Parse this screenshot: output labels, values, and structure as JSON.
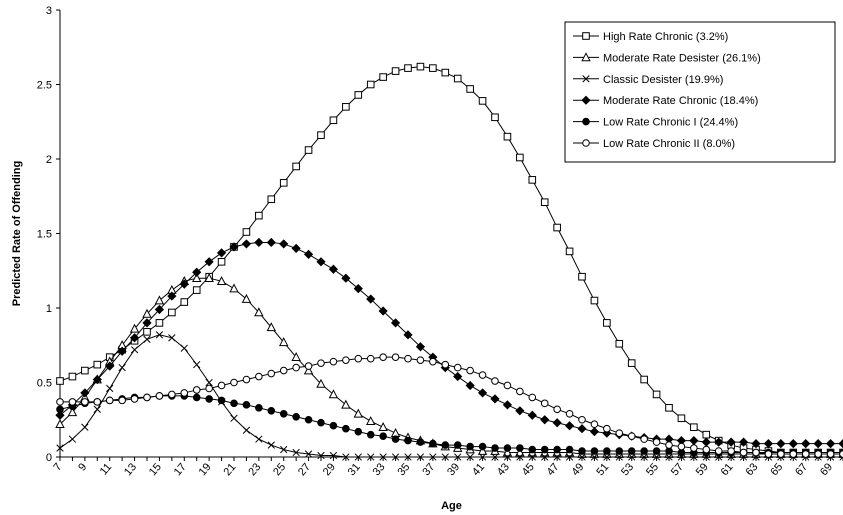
{
  "chart_data": {
    "type": "line",
    "xlabel": "Age",
    "ylabel": "Predicted Rate of Offending",
    "xlim": [
      7,
      70
    ],
    "ylim": [
      0,
      3
    ],
    "x_tick_labels": [
      "7",
      "9",
      "11",
      "13",
      "15",
      "17",
      "19",
      "21",
      "23",
      "25",
      "27",
      "29",
      "31",
      "33",
      "35",
      "37",
      "39",
      "41",
      "43",
      "45",
      "47",
      "49",
      "51",
      "53",
      "55",
      "57",
      "59",
      "61",
      "63",
      "65",
      "67",
      "69"
    ],
    "y_tick_labels": [
      "0",
      "0.5",
      "1",
      "1.5",
      "2",
      "2.5",
      "3"
    ],
    "y_tick_values": [
      0,
      0.5,
      1,
      1.5,
      2,
      2.5,
      3
    ],
    "grid": false,
    "legend_position": "top-right",
    "series": [
      {
        "name": "High Rate Chronic (3.2%)",
        "marker": "square-open",
        "x": [
          7,
          8,
          9,
          10,
          11,
          12,
          13,
          14,
          15,
          16,
          17,
          18,
          19,
          20,
          21,
          22,
          23,
          24,
          25,
          26,
          27,
          28,
          29,
          30,
          31,
          32,
          33,
          34,
          35,
          36,
          37,
          38,
          39,
          40,
          41,
          42,
          43,
          44,
          45,
          46,
          47,
          48,
          49,
          50,
          51,
          52,
          53,
          54,
          55,
          56,
          57,
          58,
          59,
          60,
          61,
          62,
          63,
          64,
          65,
          66,
          67,
          68,
          69,
          70
        ],
        "values": [
          0.51,
          0.54,
          0.58,
          0.62,
          0.67,
          0.72,
          0.78,
          0.84,
          0.9,
          0.97,
          1.04,
          1.12,
          1.21,
          1.31,
          1.41,
          1.51,
          1.62,
          1.73,
          1.84,
          1.95,
          2.06,
          2.16,
          2.26,
          2.35,
          2.43,
          2.5,
          2.55,
          2.59,
          2.61,
          2.62,
          2.61,
          2.58,
          2.54,
          2.47,
          2.39,
          2.28,
          2.15,
          2.01,
          1.86,
          1.71,
          1.54,
          1.38,
          1.21,
          1.05,
          0.9,
          0.76,
          0.63,
          0.52,
          0.42,
          0.33,
          0.26,
          0.2,
          0.15,
          0.11,
          0.08,
          0.06,
          0.05,
          0.04,
          0.03,
          0.03,
          0.03,
          0.03,
          0.03,
          0.03
        ]
      },
      {
        "name": "Moderate Rate Desister (26.1%)",
        "marker": "triangle-open",
        "x": [
          7,
          8,
          9,
          10,
          11,
          12,
          13,
          14,
          15,
          16,
          17,
          18,
          19,
          20,
          21,
          22,
          23,
          24,
          25,
          26,
          27,
          28,
          29,
          30,
          31,
          32,
          33,
          34,
          35,
          36,
          37,
          38,
          39,
          40,
          41,
          42,
          43,
          44,
          45,
          46,
          47,
          48,
          49,
          50,
          51,
          52,
          53,
          54,
          55,
          56,
          57,
          58,
          59,
          60,
          61,
          62,
          63,
          64,
          65,
          66,
          67,
          68,
          69,
          70
        ],
        "values": [
          0.22,
          0.3,
          0.4,
          0.52,
          0.64,
          0.75,
          0.86,
          0.96,
          1.05,
          1.12,
          1.18,
          1.2,
          1.2,
          1.18,
          1.13,
          1.06,
          0.97,
          0.87,
          0.77,
          0.67,
          0.58,
          0.49,
          0.42,
          0.35,
          0.29,
          0.24,
          0.2,
          0.16,
          0.13,
          0.11,
          0.09,
          0.07,
          0.06,
          0.05,
          0.04,
          0.04,
          0.03,
          0.03,
          0.03,
          0.03,
          0.03,
          0.03,
          0.02,
          0.02,
          0.02,
          0.02,
          0.02,
          0.02,
          0.02,
          0.02,
          0.02,
          0.02,
          0.02,
          0.02,
          0.02,
          0.02,
          0.02,
          0.02,
          0.02,
          0.02,
          0.02,
          0.02,
          0.02,
          0.02
        ]
      },
      {
        "name": "Classic Desister (19.9%)",
        "marker": "x",
        "x": [
          7,
          8,
          9,
          10,
          11,
          12,
          13,
          14,
          15,
          16,
          17,
          18,
          19,
          20,
          21,
          22,
          23,
          24,
          25,
          26,
          27,
          28,
          29,
          30,
          31,
          32,
          33,
          34,
          35,
          36,
          37,
          38,
          39,
          40,
          41,
          42,
          43,
          44,
          45,
          46,
          47,
          48,
          49,
          50,
          51,
          52,
          53,
          54,
          55,
          56,
          57,
          58,
          59,
          60,
          61,
          62,
          63,
          64,
          65,
          66,
          67,
          68,
          69,
          70
        ],
        "values": [
          0.06,
          0.12,
          0.2,
          0.32,
          0.46,
          0.6,
          0.72,
          0.79,
          0.82,
          0.8,
          0.73,
          0.62,
          0.5,
          0.37,
          0.26,
          0.18,
          0.12,
          0.08,
          0.05,
          0.03,
          0.02,
          0.01,
          0.01,
          0,
          0,
          0,
          0,
          0,
          0,
          0,
          0,
          0,
          0,
          0,
          0,
          0,
          0,
          0,
          0,
          0,
          0,
          0,
          0,
          0,
          0,
          0,
          0,
          0,
          0,
          0,
          0,
          0,
          0,
          0,
          0,
          0,
          0,
          0,
          0,
          0,
          0,
          0,
          0,
          0
        ]
      },
      {
        "name": "Moderate Rate Chronic (18.4%)",
        "marker": "diamond-filled",
        "x": [
          7,
          8,
          9,
          10,
          11,
          12,
          13,
          14,
          15,
          16,
          17,
          18,
          19,
          20,
          21,
          22,
          23,
          24,
          25,
          26,
          27,
          28,
          29,
          30,
          31,
          32,
          33,
          34,
          35,
          36,
          37,
          38,
          39,
          40,
          41,
          42,
          43,
          44,
          45,
          46,
          47,
          48,
          49,
          50,
          51,
          52,
          53,
          54,
          55,
          56,
          57,
          58,
          59,
          60,
          61,
          62,
          63,
          64,
          65,
          66,
          67,
          68,
          69,
          70
        ],
        "values": [
          0.28,
          0.35,
          0.43,
          0.52,
          0.61,
          0.71,
          0.8,
          0.9,
          0.99,
          1.08,
          1.16,
          1.24,
          1.31,
          1.37,
          1.41,
          1.43,
          1.44,
          1.44,
          1.43,
          1.4,
          1.36,
          1.31,
          1.26,
          1.2,
          1.13,
          1.06,
          0.98,
          0.9,
          0.82,
          0.74,
          0.67,
          0.6,
          0.54,
          0.48,
          0.43,
          0.39,
          0.35,
          0.31,
          0.28,
          0.25,
          0.23,
          0.21,
          0.19,
          0.17,
          0.16,
          0.15,
          0.14,
          0.13,
          0.12,
          0.12,
          0.11,
          0.11,
          0.1,
          0.1,
          0.1,
          0.1,
          0.09,
          0.09,
          0.09,
          0.09,
          0.09,
          0.09,
          0.09,
          0.09
        ]
      },
      {
        "name": "Low Rate Chronic I (24.4%)",
        "marker": "circle-filled",
        "x": [
          7,
          8,
          9,
          10,
          11,
          12,
          13,
          14,
          15,
          16,
          17,
          18,
          19,
          20,
          21,
          22,
          23,
          24,
          25,
          26,
          27,
          28,
          29,
          30,
          31,
          32,
          33,
          34,
          35,
          36,
          37,
          38,
          39,
          40,
          41,
          42,
          43,
          44,
          45,
          46,
          47,
          48,
          49,
          50,
          51,
          52,
          53,
          54,
          55,
          56,
          57,
          58,
          59,
          60,
          61,
          62,
          63,
          64,
          65,
          66,
          67,
          68,
          69,
          70
        ],
        "values": [
          0.32,
          0.34,
          0.36,
          0.37,
          0.38,
          0.39,
          0.4,
          0.4,
          0.41,
          0.41,
          0.41,
          0.4,
          0.39,
          0.38,
          0.36,
          0.35,
          0.33,
          0.31,
          0.29,
          0.27,
          0.25,
          0.23,
          0.21,
          0.19,
          0.17,
          0.15,
          0.14,
          0.12,
          0.11,
          0.1,
          0.09,
          0.08,
          0.08,
          0.07,
          0.07,
          0.06,
          0.06,
          0.06,
          0.05,
          0.05,
          0.05,
          0.05,
          0.04,
          0.04,
          0.04,
          0.04,
          0.04,
          0.04,
          0.04,
          0.04,
          0.03,
          0.03,
          0.03,
          0.03,
          0.03,
          0.03,
          0.03,
          0.03,
          0.03,
          0.03,
          0.03,
          0.03,
          0.03,
          0.03
        ]
      },
      {
        "name": "Low Rate Chronic II (8.0%)",
        "marker": "circle-open",
        "x": [
          7,
          8,
          9,
          10,
          11,
          12,
          13,
          14,
          15,
          16,
          17,
          18,
          19,
          20,
          21,
          22,
          23,
          24,
          25,
          26,
          27,
          28,
          29,
          30,
          31,
          32,
          33,
          34,
          35,
          36,
          37,
          38,
          39,
          40,
          41,
          42,
          43,
          44,
          45,
          46,
          47,
          48,
          49,
          50,
          51,
          52,
          53,
          54,
          55,
          56,
          57,
          58,
          59,
          60,
          61,
          62,
          63,
          64,
          65,
          66,
          67,
          68,
          69,
          70
        ],
        "values": [
          0.37,
          0.37,
          0.37,
          0.37,
          0.38,
          0.38,
          0.39,
          0.4,
          0.41,
          0.42,
          0.43,
          0.45,
          0.46,
          0.48,
          0.5,
          0.52,
          0.54,
          0.56,
          0.58,
          0.6,
          0.61,
          0.63,
          0.64,
          0.65,
          0.66,
          0.66,
          0.67,
          0.67,
          0.66,
          0.65,
          0.64,
          0.62,
          0.6,
          0.58,
          0.55,
          0.51,
          0.48,
          0.44,
          0.4,
          0.36,
          0.32,
          0.29,
          0.25,
          0.22,
          0.19,
          0.16,
          0.14,
          0.12,
          0.1,
          0.08,
          0.07,
          0.06,
          0.05,
          0.04,
          0.04,
          0.03,
          0.03,
          0.02,
          0.02,
          0.02,
          0.02,
          0.02,
          0.02,
          0.02
        ]
      }
    ]
  }
}
